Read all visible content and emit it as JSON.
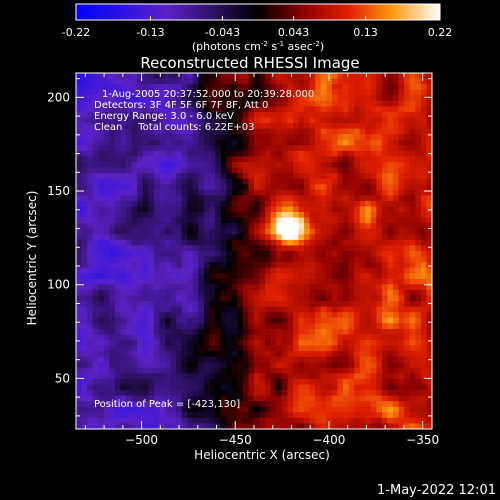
{
  "colorbar": {
    "ticks": [
      "-0.22",
      "-0.13",
      "-0.043",
      "0.043",
      "0.13",
      "0.22"
    ],
    "tick_values": [
      -0.22,
      -0.13,
      -0.043,
      0.043,
      0.13,
      0.22
    ],
    "range": [
      -0.22,
      0.22
    ],
    "units_prefix": "(photons cm",
    "units_exp1": "-2",
    "units_mid": " s",
    "units_exp2": "-1",
    "units_mid2": " asec",
    "units_exp3": "-2",
    "units_suffix": ")"
  },
  "plot": {
    "title": "Reconstructed RHESSI Image",
    "xlabel": "Heliocentric X (arcsec)",
    "ylabel": "Heliocentric Y (arcsec)",
    "xlim": [
      -535,
      -345
    ],
    "ylim": [
      23,
      213
    ],
    "xticks": [
      -500,
      -450,
      -400,
      -350
    ],
    "xtick_labels": [
      "−500",
      "−450",
      "−400",
      "−350"
    ],
    "yticks": [
      50,
      100,
      150,
      200
    ],
    "ytick_labels": [
      "50",
      "100",
      "150",
      "200"
    ],
    "info_lines": [
      "1-Aug-2005 20:37:52.000 to 20:39:28.000",
      "Detectors: 3F 4F 5F 6F 7F 8F, Att 0",
      "Energy Range: 3.0 - 6.0 keV",
      "Clean     Total counts: 6.22E+03"
    ],
    "peak_text": "Position of Peak = [-423,130]",
    "peak_position": [
      -423,
      130
    ]
  },
  "timestamp": "1-May-2022 12:01",
  "colors": {
    "background": "#000000",
    "cmap_low": "#0000ff",
    "cmap_mid": "#000000",
    "cmap_high": "#ffffff"
  }
}
